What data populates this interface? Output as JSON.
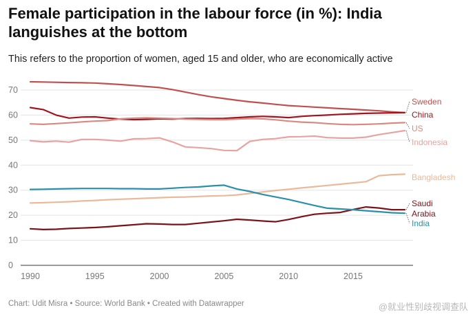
{
  "chart_data": {
    "type": "line",
    "title": "Female participation in the labour force (in %): India languishes at the bottom",
    "subtitle": "This refers to the proportion of women, aged 15 and older, who are economically active",
    "xlabel": "",
    "ylabel": "",
    "xlim": [
      1990,
      2019
    ],
    "ylim": [
      0,
      70
    ],
    "x_ticks": [
      1990,
      1995,
      2000,
      2005,
      2010,
      2015
    ],
    "y_ticks": [
      0,
      10,
      20,
      30,
      40,
      50,
      60,
      70
    ],
    "grid": true,
    "legend": "direct labels at right end of lines",
    "x": [
      1990,
      1991,
      1992,
      1993,
      1994,
      1995,
      1996,
      1997,
      1998,
      1999,
      2000,
      2001,
      2002,
      2003,
      2004,
      2005,
      2006,
      2007,
      2008,
      2009,
      2010,
      2011,
      2012,
      2013,
      2014,
      2015,
      2016,
      2017,
      2018,
      2019
    ],
    "series": [
      {
        "name": "Sweden",
        "color": "#c0504d",
        "label_lines": [
          "Sweden"
        ],
        "values": [
          73.3,
          73.2,
          73.1,
          73.0,
          72.9,
          72.8,
          72.5,
          72.2,
          71.8,
          71.4,
          71.0,
          70.2,
          69.2,
          68.2,
          67.3,
          66.6,
          65.9,
          65.3,
          64.8,
          64.3,
          63.8,
          63.5,
          63.2,
          62.9,
          62.6,
          62.3,
          62.0,
          61.7,
          61.3,
          61.0
        ]
      },
      {
        "name": "China",
        "color": "#a0141e",
        "label_lines": [
          "China"
        ],
        "values": [
          63.0,
          62.2,
          60.0,
          58.8,
          59.2,
          59.3,
          58.8,
          58.4,
          58.2,
          58.3,
          58.5,
          58.4,
          58.6,
          58.7,
          58.6,
          58.7,
          59.0,
          59.3,
          59.5,
          59.3,
          59.0,
          59.5,
          59.8,
          60.0,
          60.3,
          60.5,
          60.7,
          60.8,
          60.9,
          61.0
        ]
      },
      {
        "name": "US",
        "color": "#d98a80",
        "label_lines": [
          "US"
        ],
        "values": [
          56.5,
          56.3,
          56.6,
          56.9,
          57.3,
          57.6,
          57.8,
          58.5,
          58.8,
          58.9,
          58.8,
          58.6,
          58.4,
          58.3,
          58.2,
          58.2,
          58.4,
          58.6,
          58.5,
          58.1,
          57.6,
          57.2,
          57.0,
          56.6,
          56.3,
          56.2,
          56.3,
          56.5,
          56.8,
          57.0
        ]
      },
      {
        "name": "Indonesia",
        "color": "#e6a3a0",
        "label_lines": [
          "Indonesia"
        ],
        "values": [
          49.8,
          49.3,
          49.6,
          49.2,
          50.3,
          50.3,
          50.0,
          49.6,
          50.5,
          50.6,
          50.9,
          49.3,
          47.3,
          47.0,
          46.6,
          45.9,
          45.8,
          49.5,
          50.3,
          50.6,
          51.3,
          51.4,
          51.6,
          51.0,
          50.8,
          50.8,
          51.2,
          52.2,
          53.0,
          53.8
        ]
      },
      {
        "name": "Bangladesh",
        "color": "#eab99a",
        "label_lines": [
          "Bangladesh"
        ],
        "values": [
          24.9,
          25.0,
          25.2,
          25.4,
          25.7,
          25.9,
          26.2,
          26.4,
          26.6,
          26.8,
          27.0,
          27.2,
          27.3,
          27.5,
          27.7,
          27.8,
          28.1,
          28.7,
          29.3,
          29.9,
          30.4,
          30.9,
          31.4,
          31.9,
          32.4,
          32.9,
          33.4,
          35.8,
          36.2,
          36.4
        ]
      },
      {
        "name": "Saudi Arabia",
        "color": "#7a1218",
        "label_lines": [
          "Saudi",
          "Arabia"
        ],
        "values": [
          14.6,
          14.3,
          14.4,
          14.7,
          14.9,
          15.1,
          15.4,
          15.8,
          16.2,
          16.6,
          16.5,
          16.3,
          16.3,
          16.8,
          17.3,
          17.8,
          18.4,
          18.1,
          17.7,
          17.4,
          18.3,
          19.4,
          20.4,
          20.8,
          21.1,
          22.3,
          23.3,
          22.9,
          22.2,
          22.2
        ]
      },
      {
        "name": "India",
        "color": "#2a8fa8",
        "label_lines": [
          "India"
        ],
        "values": [
          30.3,
          30.4,
          30.5,
          30.6,
          30.7,
          30.7,
          30.7,
          30.6,
          30.6,
          30.5,
          30.5,
          30.8,
          31.1,
          31.3,
          31.7,
          32.0,
          30.5,
          29.5,
          28.3,
          27.3,
          26.3,
          25.1,
          23.9,
          22.8,
          22.5,
          22.2,
          21.8,
          21.4,
          21.0,
          20.8
        ]
      }
    ]
  },
  "footer": "Chart: Udit Misra • Source: World Bank • Created with Datawrapper",
  "watermark": "@就业性别歧视调查队"
}
